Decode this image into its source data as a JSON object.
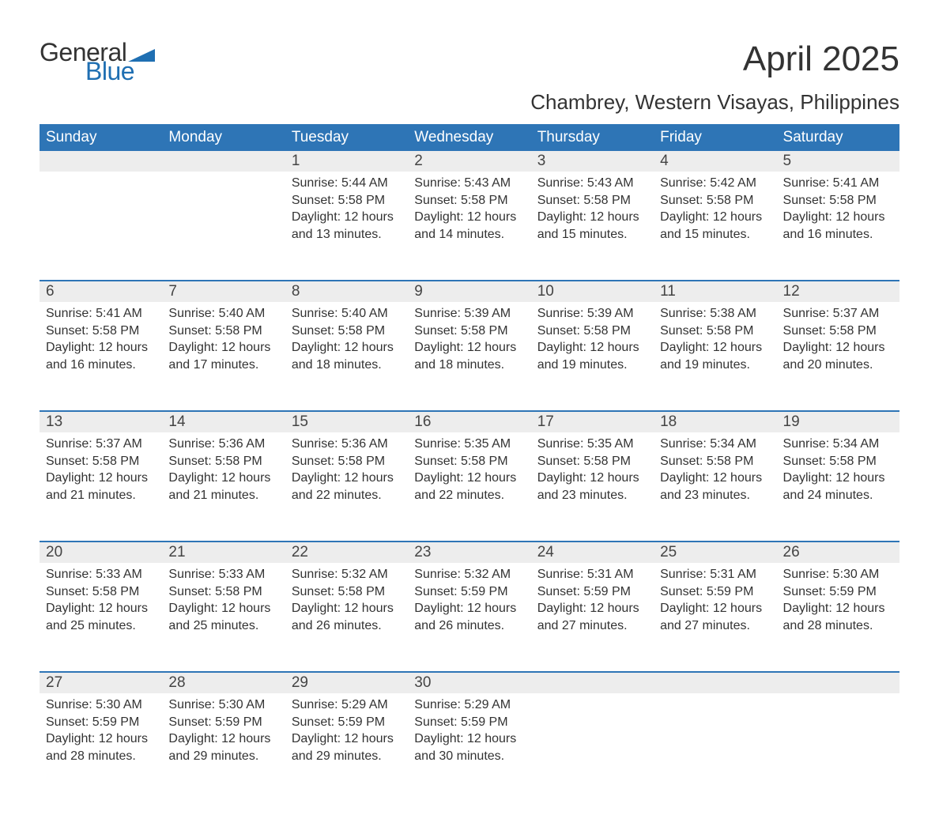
{
  "logo": {
    "word1": "General",
    "word2": "Blue",
    "flag_color": "#1f6fb2"
  },
  "title": "April 2025",
  "location": "Chambrey, Western Visayas, Philippines",
  "colors": {
    "header_bg": "#2e75b6",
    "header_fg": "#ffffff",
    "daynum_bg": "#ededed",
    "rule": "#2e75b6",
    "text": "#333333"
  },
  "day_headers": [
    "Sunday",
    "Monday",
    "Tuesday",
    "Wednesday",
    "Thursday",
    "Friday",
    "Saturday"
  ],
  "weeks": [
    [
      null,
      null,
      {
        "n": "1",
        "sunrise": "5:44 AM",
        "sunset": "5:58 PM",
        "daylight": "12 hours and 13 minutes."
      },
      {
        "n": "2",
        "sunrise": "5:43 AM",
        "sunset": "5:58 PM",
        "daylight": "12 hours and 14 minutes."
      },
      {
        "n": "3",
        "sunrise": "5:43 AM",
        "sunset": "5:58 PM",
        "daylight": "12 hours and 15 minutes."
      },
      {
        "n": "4",
        "sunrise": "5:42 AM",
        "sunset": "5:58 PM",
        "daylight": "12 hours and 15 minutes."
      },
      {
        "n": "5",
        "sunrise": "5:41 AM",
        "sunset": "5:58 PM",
        "daylight": "12 hours and 16 minutes."
      }
    ],
    [
      {
        "n": "6",
        "sunrise": "5:41 AM",
        "sunset": "5:58 PM",
        "daylight": "12 hours and 16 minutes."
      },
      {
        "n": "7",
        "sunrise": "5:40 AM",
        "sunset": "5:58 PM",
        "daylight": "12 hours and 17 minutes."
      },
      {
        "n": "8",
        "sunrise": "5:40 AM",
        "sunset": "5:58 PM",
        "daylight": "12 hours and 18 minutes."
      },
      {
        "n": "9",
        "sunrise": "5:39 AM",
        "sunset": "5:58 PM",
        "daylight": "12 hours and 18 minutes."
      },
      {
        "n": "10",
        "sunrise": "5:39 AM",
        "sunset": "5:58 PM",
        "daylight": "12 hours and 19 minutes."
      },
      {
        "n": "11",
        "sunrise": "5:38 AM",
        "sunset": "5:58 PM",
        "daylight": "12 hours and 19 minutes."
      },
      {
        "n": "12",
        "sunrise": "5:37 AM",
        "sunset": "5:58 PM",
        "daylight": "12 hours and 20 minutes."
      }
    ],
    [
      {
        "n": "13",
        "sunrise": "5:37 AM",
        "sunset": "5:58 PM",
        "daylight": "12 hours and 21 minutes."
      },
      {
        "n": "14",
        "sunrise": "5:36 AM",
        "sunset": "5:58 PM",
        "daylight": "12 hours and 21 minutes."
      },
      {
        "n": "15",
        "sunrise": "5:36 AM",
        "sunset": "5:58 PM",
        "daylight": "12 hours and 22 minutes."
      },
      {
        "n": "16",
        "sunrise": "5:35 AM",
        "sunset": "5:58 PM",
        "daylight": "12 hours and 22 minutes."
      },
      {
        "n": "17",
        "sunrise": "5:35 AM",
        "sunset": "5:58 PM",
        "daylight": "12 hours and 23 minutes."
      },
      {
        "n": "18",
        "sunrise": "5:34 AM",
        "sunset": "5:58 PM",
        "daylight": "12 hours and 23 minutes."
      },
      {
        "n": "19",
        "sunrise": "5:34 AM",
        "sunset": "5:58 PM",
        "daylight": "12 hours and 24 minutes."
      }
    ],
    [
      {
        "n": "20",
        "sunrise": "5:33 AM",
        "sunset": "5:58 PM",
        "daylight": "12 hours and 25 minutes."
      },
      {
        "n": "21",
        "sunrise": "5:33 AM",
        "sunset": "5:58 PM",
        "daylight": "12 hours and 25 minutes."
      },
      {
        "n": "22",
        "sunrise": "5:32 AM",
        "sunset": "5:58 PM",
        "daylight": "12 hours and 26 minutes."
      },
      {
        "n": "23",
        "sunrise": "5:32 AM",
        "sunset": "5:59 PM",
        "daylight": "12 hours and 26 minutes."
      },
      {
        "n": "24",
        "sunrise": "5:31 AM",
        "sunset": "5:59 PM",
        "daylight": "12 hours and 27 minutes."
      },
      {
        "n": "25",
        "sunrise": "5:31 AM",
        "sunset": "5:59 PM",
        "daylight": "12 hours and 27 minutes."
      },
      {
        "n": "26",
        "sunrise": "5:30 AM",
        "sunset": "5:59 PM",
        "daylight": "12 hours and 28 minutes."
      }
    ],
    [
      {
        "n": "27",
        "sunrise": "5:30 AM",
        "sunset": "5:59 PM",
        "daylight": "12 hours and 28 minutes."
      },
      {
        "n": "28",
        "sunrise": "5:30 AM",
        "sunset": "5:59 PM",
        "daylight": "12 hours and 29 minutes."
      },
      {
        "n": "29",
        "sunrise": "5:29 AM",
        "sunset": "5:59 PM",
        "daylight": "12 hours and 29 minutes."
      },
      {
        "n": "30",
        "sunrise": "5:29 AM",
        "sunset": "5:59 PM",
        "daylight": "12 hours and 30 minutes."
      },
      null,
      null,
      null
    ]
  ],
  "labels": {
    "sunrise": "Sunrise: ",
    "sunset": "Sunset: ",
    "daylight": "Daylight: "
  }
}
